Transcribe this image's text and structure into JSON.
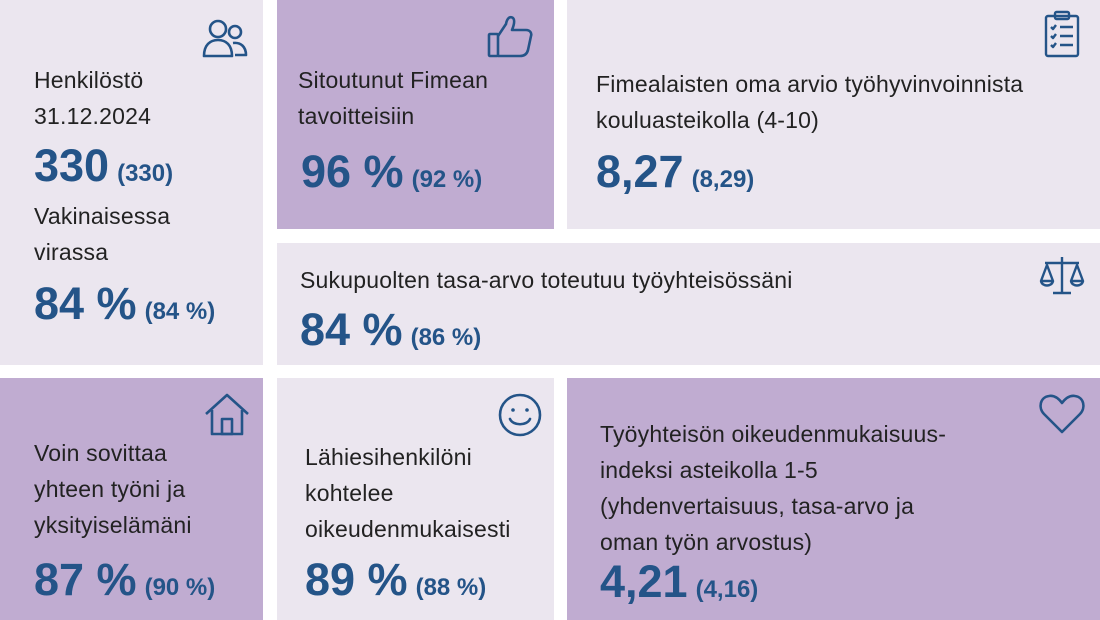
{
  "tiles": {
    "staff": {
      "label": "Henkilöstö\n31.12.2024",
      "value": "330",
      "previous": "(330)",
      "sublabel": "Vakinaisessa\nvirassa",
      "subvalue": "84 %",
      "subprevious": "(84 %)",
      "icon": "people-icon"
    },
    "commitment": {
      "label": "Sitoutunut Fimean\ntavoitteisiin",
      "value": "96 %",
      "previous": "(92 %)",
      "icon": "thumbs-up-icon"
    },
    "wellbeing": {
      "label": "Fimealaisten oma arvio työhyvinvoinnista\nkouluasteikolla (4-10)",
      "value": "8,27",
      "previous": "(8,29)",
      "icon": "clipboard-checklist-icon"
    },
    "equality": {
      "label": "Sukupuolten tasa-arvo toteutuu työyhteisössäni",
      "value": "84 %",
      "previous": "(86 %)",
      "icon": "scales-icon"
    },
    "worklife": {
      "label": "Voin sovittaa\nyhteen työni ja\nyksityiselämäni",
      "value": "87 %",
      "previous": "(90 %)",
      "icon": "house-icon"
    },
    "supervisor": {
      "label": "Lähiesihenkilöni\nkohtelee\noikeudenmukaisesti",
      "value": "89 %",
      "previous": "(88 %)",
      "icon": "smiley-icon"
    },
    "justice": {
      "label": "Työyhteisön oikeudenmukaisuus-\nindeksi asteikolla 1-5\n(yhdenvertaisuus, tasa-arvo ja\noman työn arvostus)",
      "value": "4,21",
      "previous": "(4,16)",
      "icon": "heart-icon"
    }
  },
  "colors": {
    "light_tile": "#ebe6ef",
    "dark_tile": "#c0acd1",
    "accent": "#245488",
    "text": "#222222"
  }
}
